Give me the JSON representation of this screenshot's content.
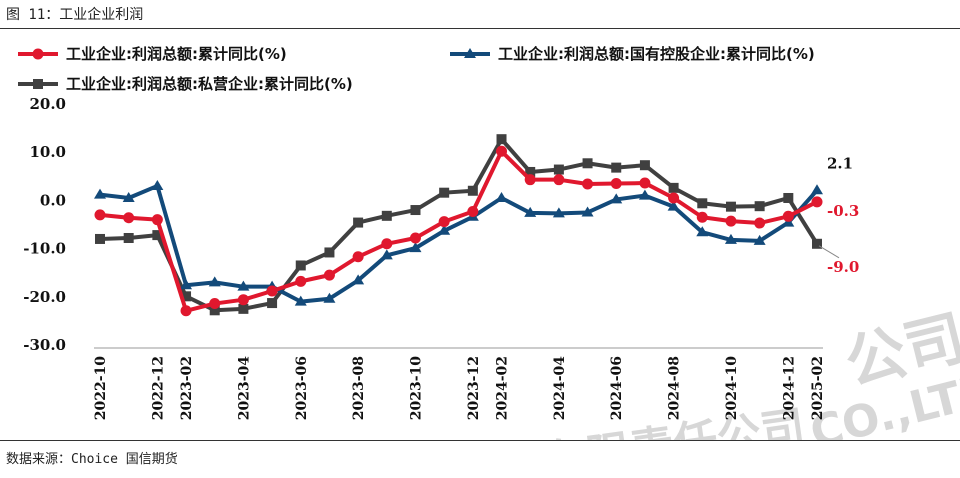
{
  "figure_title": "图 11：工业企业利润",
  "source": "数据来源：Choice  国信期货",
  "watermark": {
    "main": "公司",
    "secondary": "CO.,LTD.",
    "bottom": "有限责任公司"
  },
  "chart_data": {
    "type": "line",
    "title": "",
    "xlabel": "",
    "ylabel": "",
    "ylim": [
      -30,
      20
    ],
    "yticks": [
      20.0,
      10.0,
      0.0,
      -10.0,
      -20.0,
      -30.0
    ],
    "ytick_labels": [
      "20.0",
      "10.0",
      "0.0",
      "-10.0",
      "-20.0",
      "-30.0"
    ],
    "categories": [
      "2022-10",
      "2022-11",
      "2022-12",
      "2023-02",
      "2023-03",
      "2023-04",
      "2023-05",
      "2023-06",
      "2023-07",
      "2023-08",
      "2023-09",
      "2023-10",
      "2023-11",
      "2023-12",
      "2024-02",
      "2024-03",
      "2024-04",
      "2024-05",
      "2024-06",
      "2024-07",
      "2024-08",
      "2024-09",
      "2024-10",
      "2024-11",
      "2024-12",
      "2025-02"
    ],
    "xtick_labels": [
      "2022-10",
      "2022-12",
      "2023-02",
      "2023-04",
      "2023-06",
      "2023-08",
      "2023-10",
      "2023-12",
      "2024-02",
      "2024-04",
      "2024-06",
      "2024-08",
      "2024-10",
      "2024-12",
      "2025-02"
    ],
    "series": [
      {
        "name": "工业企业:利润总额:累计同比(%)",
        "color": "#e0182e",
        "marker": "circle",
        "values": [
          -3.0,
          -3.6,
          -4.0,
          -22.9,
          -21.4,
          -20.6,
          -18.8,
          -16.8,
          -15.5,
          -11.7,
          -9.0,
          -7.8,
          -4.4,
          -2.3,
          10.2,
          4.3,
          4.3,
          3.4,
          3.5,
          3.6,
          0.5,
          -3.5,
          -4.3,
          -4.7,
          -3.3,
          -0.3
        ]
      },
      {
        "name": "工业企业:利润总额:国有控股企业:累计同比(%)",
        "color": "#134a7a",
        "marker": "triangle",
        "values": [
          1.2,
          0.5,
          3.0,
          -17.6,
          -17.0,
          -17.9,
          -17.9,
          -21.0,
          -20.4,
          -16.6,
          -11.4,
          -9.9,
          -6.3,
          -3.4,
          0.5,
          -2.6,
          -2.7,
          -2.5,
          0.2,
          1.0,
          -1.3,
          -6.6,
          -8.2,
          -8.4,
          -4.6,
          2.1
        ]
      },
      {
        "name": "工业企业:利润总额:私营企业:累计同比(%)",
        "color": "#404040",
        "marker": "square",
        "values": [
          -8.0,
          -7.8,
          -7.2,
          -19.9,
          -22.8,
          -22.5,
          -21.3,
          -13.5,
          -10.8,
          -4.6,
          -3.2,
          -2.0,
          1.6,
          2.0,
          12.7,
          5.9,
          6.4,
          7.7,
          6.8,
          7.3,
          2.6,
          -0.6,
          -1.3,
          -1.2,
          0.5,
          -9.0
        ]
      }
    ],
    "annotations": [
      {
        "text": "2.1",
        "series": 1,
        "color": "#111111"
      },
      {
        "text": "-0.3",
        "series": 0,
        "color": "#e0182e"
      },
      {
        "text": "-9.0",
        "series": 2,
        "color": "#e0182e"
      }
    ],
    "legend": {
      "placement": "top",
      "columns": 2
    }
  }
}
